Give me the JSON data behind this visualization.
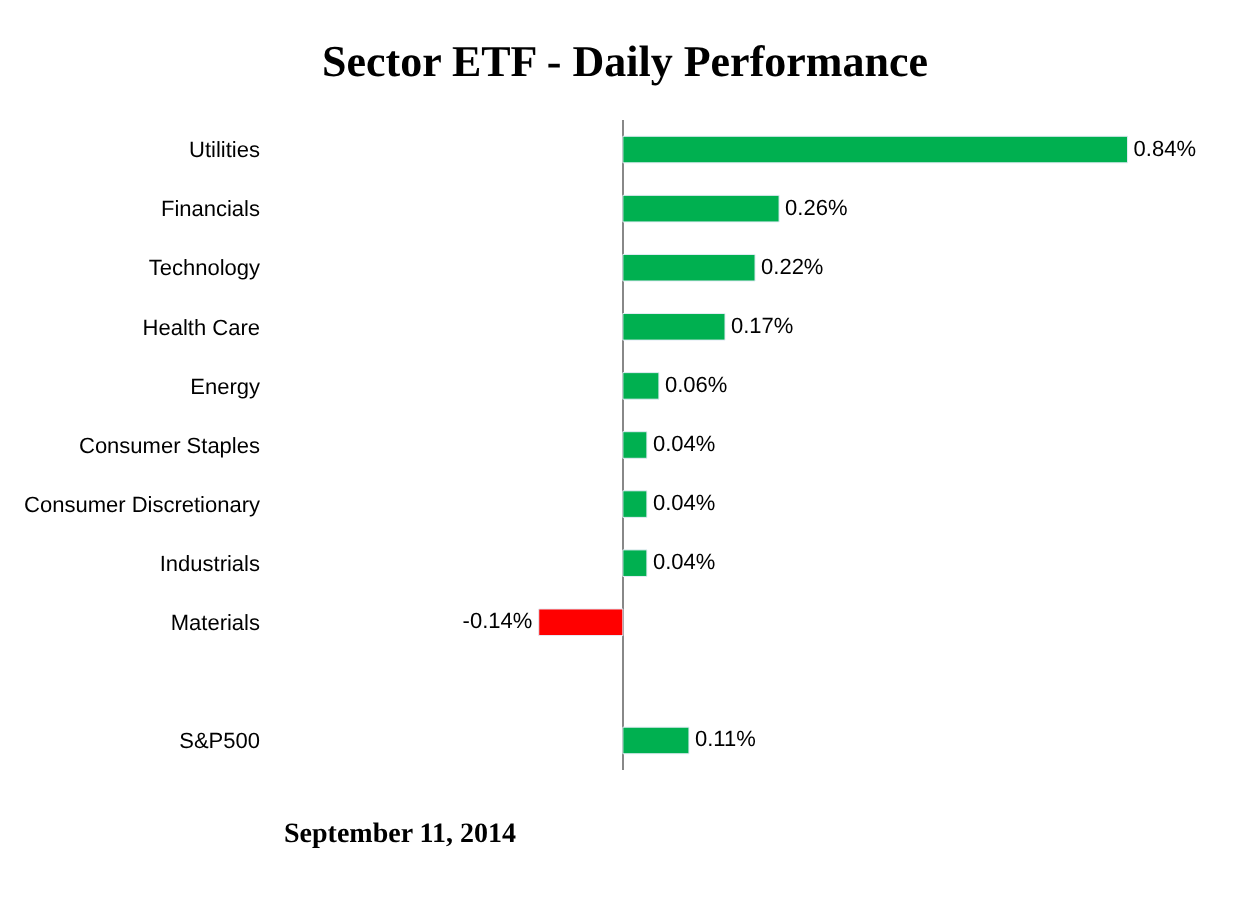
{
  "chart_data": {
    "type": "bar",
    "orientation": "horizontal",
    "title": "Sector ETF - Daily Performance",
    "categories": [
      "Utilities",
      "Financials",
      "Technology",
      "Health Care",
      "Energy",
      "Consumer Staples",
      "Consumer Discretionary",
      "Industrials",
      "Materials",
      null,
      "S&P500"
    ],
    "values": [
      0.84,
      0.26,
      0.22,
      0.17,
      0.06,
      0.04,
      0.04,
      0.04,
      -0.14,
      null,
      0.11
    ],
    "value_labels": [
      "0.84%",
      "0.26%",
      "0.22%",
      "0.17%",
      "0.06%",
      "0.04%",
      "0.04%",
      "0.04%",
      "-0.14%",
      null,
      "0.11%"
    ],
    "colors": [
      "#00b050",
      "#00b050",
      "#00b050",
      "#00b050",
      "#00b050",
      "#00b050",
      "#00b050",
      "#00b050",
      "#ff0000",
      null,
      "#00b050"
    ],
    "tick_labels": "y",
    "annotations": [
      "September 11, 2014"
    ]
  }
}
